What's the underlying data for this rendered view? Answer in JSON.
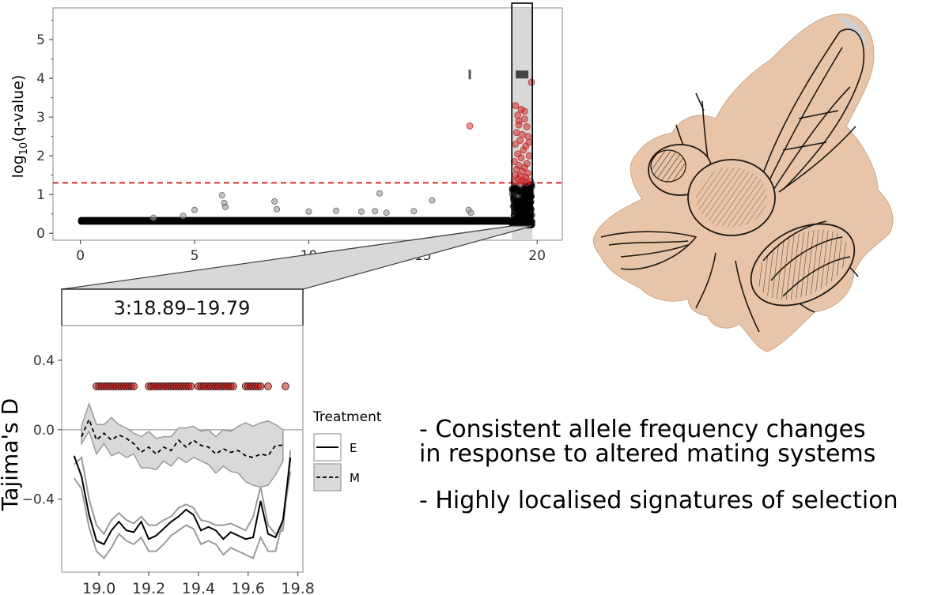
{
  "chart_data": [
    {
      "type": "scatter",
      "title": "",
      "xlabel": "",
      "ylabel": "log10(q-value)",
      "xlim": [
        -1.2,
        21.1
      ],
      "ylim": [
        -0.18,
        5.82
      ],
      "xticks": [
        0,
        5,
        10,
        15,
        20
      ],
      "yticks": [
        0,
        1,
        2,
        3,
        4,
        5
      ],
      "grid": false,
      "threshold_line": {
        "y": 1.3,
        "color": "#cc0000",
        "style": "dashed"
      },
      "highlight_region": {
        "x": [
          18.89,
          19.79
        ]
      },
      "points_gray": [
        {
          "x": 5.0,
          "y": 0.6
        },
        {
          "x": 6.2,
          "y": 0.98
        },
        {
          "x": 6.3,
          "y": 0.78
        },
        {
          "x": 6.35,
          "y": 0.68
        },
        {
          "x": 8.5,
          "y": 0.82
        },
        {
          "x": 8.6,
          "y": 0.62
        },
        {
          "x": 10.0,
          "y": 0.56
        },
        {
          "x": 11.2,
          "y": 0.58
        },
        {
          "x": 12.3,
          "y": 0.56
        },
        {
          "x": 12.9,
          "y": 0.57
        },
        {
          "x": 13.1,
          "y": 1.03
        },
        {
          "x": 13.4,
          "y": 0.53
        },
        {
          "x": 14.6,
          "y": 0.57
        },
        {
          "x": 15.4,
          "y": 0.85
        },
        {
          "x": 17.0,
          "y": 0.6
        },
        {
          "x": 17.1,
          "y": 0.53
        },
        {
          "x": 3.2,
          "y": 0.4
        },
        {
          "x": 4.5,
          "y": 0.45
        }
      ],
      "points_red": [
        {
          "x": 17.05,
          "y": 2.77
        },
        {
          "x": 19.75,
          "y": 3.9
        },
        {
          "x": 19.05,
          "y": 3.3
        },
        {
          "x": 19.3,
          "y": 3.2
        },
        {
          "x": 19.15,
          "y": 3.05
        },
        {
          "x": 19.45,
          "y": 2.95
        },
        {
          "x": 19.2,
          "y": 2.8
        },
        {
          "x": 19.55,
          "y": 2.75
        },
        {
          "x": 19.1,
          "y": 2.6
        },
        {
          "x": 19.35,
          "y": 2.55
        },
        {
          "x": 19.6,
          "y": 2.5
        },
        {
          "x": 19.25,
          "y": 2.4
        },
        {
          "x": 19.05,
          "y": 2.3
        },
        {
          "x": 19.5,
          "y": 2.25
        },
        {
          "x": 19.4,
          "y": 2.15
        },
        {
          "x": 19.15,
          "y": 2.05
        },
        {
          "x": 19.65,
          "y": 2.0
        },
        {
          "x": 19.3,
          "y": 1.95
        },
        {
          "x": 19.0,
          "y": 1.85
        },
        {
          "x": 19.55,
          "y": 1.8
        },
        {
          "x": 19.2,
          "y": 1.75
        },
        {
          "x": 19.45,
          "y": 1.7
        },
        {
          "x": 19.1,
          "y": 1.65
        },
        {
          "x": 19.35,
          "y": 1.6
        },
        {
          "x": 19.6,
          "y": 1.55
        },
        {
          "x": 19.05,
          "y": 1.5
        },
        {
          "x": 19.25,
          "y": 1.48
        },
        {
          "x": 19.5,
          "y": 1.45
        },
        {
          "x": 19.15,
          "y": 1.42
        },
        {
          "x": 19.4,
          "y": 1.38
        },
        {
          "x": 19.7,
          "y": 1.35
        },
        {
          "x": 19.0,
          "y": 1.33
        },
        {
          "x": 19.3,
          "y": 1.32
        },
        {
          "x": 19.55,
          "y": 1.31
        },
        {
          "x": 19.2,
          "y": 2.9
        },
        {
          "x": 19.45,
          "y": 3.15
        },
        {
          "x": 19.65,
          "y": 2.35
        }
      ],
      "black_band": {
        "x": [
          0.0,
          18.9
        ],
        "y": [
          0.22,
          0.42
        ]
      },
      "black_cluster": {
        "x": [
          18.9,
          19.79
        ],
        "y": [
          0.2,
          1.28
        ]
      },
      "marker_ticks": [
        {
          "x": [
            17.0,
            17.1
          ],
          "y": 4.1
        },
        {
          "x": 18.9,
          "x_end": 19.79,
          "y": 4.1
        }
      ]
    },
    {
      "type": "line",
      "title": "3:18.89–19.79",
      "xlabel": "",
      "ylabel": "Tajima's D",
      "xlim": [
        18.85,
        19.82
      ],
      "ylim": [
        -0.82,
        0.6
      ],
      "xticks": [
        19.0,
        19.2,
        19.4,
        19.6,
        19.8
      ],
      "yticks": [
        0.4,
        0.0,
        -0.4
      ],
      "ytick_labels": [
        "0.4",
        "0.0",
        "−0.4"
      ],
      "grid": false,
      "reference_line": {
        "y": 0.0
      },
      "legend": {
        "title": "Treatment",
        "placement": "right",
        "entries": [
          {
            "label": "E",
            "style": "solid"
          },
          {
            "label": "M",
            "style": "dashed"
          }
        ]
      },
      "x": [
        18.9,
        18.93,
        18.96,
        18.99,
        19.02,
        19.05,
        19.08,
        19.11,
        19.14,
        19.17,
        19.2,
        19.23,
        19.26,
        19.29,
        19.32,
        19.35,
        19.38,
        19.41,
        19.44,
        19.47,
        19.5,
        19.53,
        19.56,
        19.59,
        19.62,
        19.65,
        19.68,
        19.71,
        19.74,
        19.77
      ],
      "series": [
        {
          "name": "E",
          "style": "solid",
          "values": [
            -0.15,
            -0.27,
            -0.49,
            -0.64,
            -0.66,
            -0.58,
            -0.53,
            -0.58,
            -0.59,
            -0.53,
            -0.63,
            -0.61,
            -0.57,
            -0.53,
            -0.5,
            -0.46,
            -0.49,
            -0.58,
            -0.56,
            -0.58,
            -0.63,
            -0.59,
            -0.61,
            -0.63,
            -0.62,
            -0.41,
            -0.6,
            -0.62,
            -0.52,
            -0.16
          ],
          "band_upper": [
            -0.2,
            -0.16,
            -0.4,
            -0.55,
            -0.6,
            -0.52,
            -0.48,
            -0.52,
            -0.54,
            -0.5,
            -0.55,
            -0.55,
            -0.52,
            -0.5,
            -0.45,
            -0.43,
            -0.45,
            -0.52,
            -0.53,
            -0.55,
            -0.55,
            -0.54,
            -0.56,
            -0.58,
            -0.5,
            -0.33,
            -0.55,
            -0.6,
            -0.58,
            -0.12
          ],
          "band_lower": [
            -0.28,
            -0.34,
            -0.56,
            -0.7,
            -0.74,
            -0.68,
            -0.6,
            -0.64,
            -0.66,
            -0.62,
            -0.7,
            -0.7,
            -0.66,
            -0.61,
            -0.58,
            -0.55,
            -0.57,
            -0.66,
            -0.64,
            -0.66,
            -0.72,
            -0.68,
            -0.7,
            -0.72,
            -0.74,
            -0.62,
            -0.7,
            -0.7,
            -0.52,
            -0.24
          ]
        },
        {
          "name": "M",
          "style": "dashed",
          "values": [
            null,
            -0.04,
            0.06,
            -0.06,
            -0.02,
            -0.06,
            -0.03,
            -0.05,
            -0.08,
            -0.13,
            -0.1,
            -0.14,
            -0.1,
            -0.12,
            -0.06,
            -0.1,
            -0.06,
            -0.09,
            -0.1,
            -0.14,
            -0.11,
            -0.13,
            -0.12,
            -0.15,
            -0.16,
            -0.14,
            -0.15,
            -0.09,
            -0.09,
            null
          ],
          "band_upper": [
            null,
            0.02,
            0.15,
            0.03,
            0.03,
            0.07,
            0.03,
            0.01,
            -0.02,
            -0.04,
            -0.01,
            -0.05,
            -0.04,
            -0.04,
            0.01,
            0.01,
            0.02,
            -0.01,
            0.0,
            -0.04,
            0.0,
            -0.01,
            0.02,
            0.04,
            0.02,
            0.04,
            0.05,
            0.03,
            0.0,
            null
          ],
          "band_lower": [
            null,
            -0.08,
            -0.01,
            -0.14,
            -0.08,
            -0.15,
            -0.13,
            -0.16,
            -0.14,
            -0.22,
            -0.22,
            -0.23,
            -0.18,
            -0.21,
            -0.16,
            -0.19,
            -0.16,
            -0.18,
            -0.2,
            -0.25,
            -0.21,
            -0.24,
            -0.25,
            -0.3,
            -0.32,
            -0.33,
            -0.32,
            -0.26,
            -0.18,
            null
          ]
        }
      ],
      "sig_points": {
        "y": 0.25,
        "x": [
          18.99,
          19.0,
          19.01,
          19.02,
          19.03,
          19.04,
          19.05,
          19.06,
          19.07,
          19.08,
          19.09,
          19.1,
          19.11,
          19.12,
          19.13,
          19.14,
          19.2,
          19.21,
          19.22,
          19.23,
          19.24,
          19.25,
          19.26,
          19.27,
          19.28,
          19.29,
          19.3,
          19.31,
          19.32,
          19.33,
          19.34,
          19.35,
          19.36,
          19.37,
          19.4,
          19.41,
          19.42,
          19.43,
          19.44,
          19.45,
          19.46,
          19.47,
          19.48,
          19.49,
          19.5,
          19.51,
          19.52,
          19.53,
          19.54,
          19.59,
          19.6,
          19.61,
          19.62,
          19.63,
          19.64,
          19.65,
          19.68,
          19.75
        ]
      }
    }
  ],
  "bullets": [
    "- Consistent allele frequency changes in response to altered mating systems",
    "- Highly localised signatures of selection"
  ],
  "bullet_lines": [
    [
      "- Consistent allele frequency changes",
      "in response to altered mating systems"
    ],
    [
      "- Highly localised signatures of selection"
    ]
  ],
  "image": {
    "subject": "fly-illustration-icon"
  }
}
